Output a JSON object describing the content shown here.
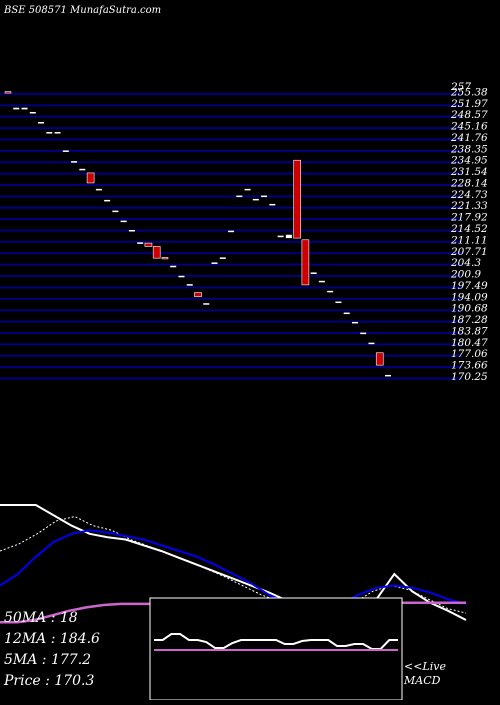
{
  "header": {
    "code": "BSE 508571",
    "site": "MunafaSutra.com"
  },
  "chart_data": [
    {
      "type": "candlestick",
      "title": "",
      "y_tick_labels": [
        "257",
        "255.38",
        "251.97",
        "248.57",
        "245.16",
        "241.76",
        "238.35",
        "234.95",
        "231.54",
        "228.14",
        "224.73",
        "221.33",
        "217.92",
        "214.52",
        "211.11",
        "207.71",
        "204.3",
        "200.9",
        "197.49",
        "194.09",
        "190.68",
        "187.28",
        "183.87",
        "180.47",
        "177.06",
        "173.66",
        "170.25"
      ],
      "ylim": [
        170.25,
        257
      ],
      "grid": true,
      "candles": [
        {
          "o": 255.3,
          "c": 254.9,
          "color": "red"
        },
        {
          "o": 250.5,
          "c": 250.0,
          "color": "white"
        },
        {
          "o": 250.5,
          "c": 250.0,
          "color": "white"
        },
        {
          "o": 249.0,
          "c": 249.0,
          "color": "white"
        },
        {
          "o": 246.0,
          "c": 246.0,
          "color": "white"
        },
        {
          "o": 243.0,
          "c": 243.0,
          "color": "white"
        },
        {
          "o": 243.0,
          "c": 243.0,
          "color": "white"
        },
        {
          "o": 237.5,
          "c": 237.5,
          "color": "white"
        },
        {
          "o": 234.3,
          "c": 234.3,
          "color": "white"
        },
        {
          "o": 232.0,
          "c": 232.0,
          "color": "white"
        },
        {
          "o": 231.0,
          "c": 228.0,
          "color": "red"
        },
        {
          "o": 226.0,
          "c": 226.0,
          "color": "white"
        },
        {
          "o": 222.7,
          "c": 222.7,
          "color": "white"
        },
        {
          "o": 219.5,
          "c": 219.5,
          "color": "white"
        },
        {
          "o": 216.5,
          "c": 216.5,
          "color": "white"
        },
        {
          "o": 213.7,
          "c": 213.7,
          "color": "white"
        },
        {
          "o": 210.0,
          "c": 210.0,
          "color": "white"
        },
        {
          "o": 210.0,
          "c": 209.0,
          "color": "red"
        },
        {
          "o": 209.0,
          "c": 205.5,
          "color": "red"
        },
        {
          "o": 205.7,
          "c": 205.3,
          "color": "red"
        },
        {
          "o": 203.0,
          "c": 203.0,
          "color": "white"
        },
        {
          "o": 200.0,
          "c": 200.0,
          "color": "white"
        },
        {
          "o": 197.5,
          "c": 197.5,
          "color": "white"
        },
        {
          "o": 195.2,
          "c": 194.0,
          "color": "red"
        },
        {
          "o": 191.8,
          "c": 191.8,
          "color": "white"
        },
        {
          "o": 204.0,
          "c": 204.0,
          "color": "white"
        },
        {
          "o": 205.5,
          "c": 205.5,
          "color": "white"
        },
        {
          "o": 213.5,
          "c": 213.5,
          "color": "white"
        },
        {
          "o": 224.0,
          "c": 224.0,
          "color": "white"
        },
        {
          "o": 226.0,
          "c": 226.0,
          "color": "white"
        },
        {
          "o": 223.0,
          "c": 223.0,
          "color": "white"
        },
        {
          "o": 224.0,
          "c": 224.0,
          "color": "white"
        },
        {
          "o": 221.5,
          "c": 221.5,
          "color": "white"
        },
        {
          "o": 212.0,
          "c": 212.0,
          "color": "white"
        },
        {
          "o": 212.5,
          "c": 211.5,
          "color": "white"
        },
        {
          "o": 234.8,
          "c": 211.5,
          "color": "red"
        },
        {
          "o": 211.0,
          "c": 197.5,
          "color": "red"
        },
        {
          "o": 201.0,
          "c": 201.0,
          "color": "white"
        },
        {
          "o": 198.5,
          "c": 198.5,
          "color": "white"
        },
        {
          "o": 195.5,
          "c": 195.5,
          "color": "white"
        },
        {
          "o": 192.3,
          "c": 192.3,
          "color": "white"
        },
        {
          "o": 189.0,
          "c": 189.0,
          "color": "white"
        },
        {
          "o": 186.2,
          "c": 186.2,
          "color": "white"
        },
        {
          "o": 183.0,
          "c": 183.0,
          "color": "white"
        },
        {
          "o": 180.0,
          "c": 180.0,
          "color": "white"
        },
        {
          "o": 177.2,
          "c": 173.5,
          "color": "red"
        },
        {
          "o": 170.4,
          "c": 170.3,
          "color": "white"
        }
      ]
    },
    {
      "type": "line",
      "title": "",
      "series": [
        {
          "color": "#ffffff",
          "values": [
            100,
            100,
            100,
            91,
            82,
            75,
            72,
            70,
            65,
            60,
            54,
            48,
            42,
            36,
            30,
            24,
            17,
            11,
            5,
            0,
            2,
            18,
            40,
            25,
            15,
            8,
            0
          ]
        },
        {
          "color": "#ffffff",
          "dashed": true,
          "values": [
            60,
            66,
            75,
            86,
            90,
            82,
            78,
            70,
            64,
            58,
            52,
            45,
            38,
            30,
            22,
            16,
            8,
            2,
            4,
            15,
            25,
            30,
            26,
            18,
            10,
            6
          ]
        },
        {
          "color": "#0000ee",
          "values": [
            30,
            40,
            55,
            68,
            75,
            78,
            76,
            73,
            70,
            65,
            60,
            55,
            48,
            40,
            32,
            22,
            15,
            10,
            8,
            14,
            22,
            28,
            30,
            28,
            24,
            18,
            14
          ]
        },
        {
          "color": "#cc66cc",
          "values": [
            -2,
            -2,
            0,
            4,
            8,
            11,
            13,
            14,
            14,
            14,
            14,
            13,
            13,
            12,
            12,
            12,
            12,
            12,
            12,
            12,
            12,
            13,
            14,
            15,
            15,
            15,
            15,
            15
          ]
        }
      ]
    },
    {
      "type": "line",
      "title": "",
      "series": [
        {
          "color": "#ffffff",
          "values": [
            0,
            0,
            6,
            6,
            0,
            0,
            -2,
            -8,
            -8,
            -3,
            0,
            0,
            0,
            0,
            0,
            -4,
            -4,
            -1,
            0,
            0,
            0,
            -6,
            -6,
            -4,
            -4,
            -9,
            -9,
            0,
            0
          ]
        },
        {
          "color": "#cc66cc",
          "values": [
            0,
            0,
            0,
            0,
            0,
            0,
            0,
            0,
            0,
            0,
            0,
            0,
            0,
            0,
            0,
            0,
            0,
            0,
            0,
            0,
            0,
            0,
            0,
            0,
            0,
            0,
            0,
            0,
            0
          ]
        }
      ]
    }
  ],
  "ma_panel": {
    "ma50": "50MA : 18",
    "ma12": "12MA : 184.6",
    "ma5": "5MA : 177.2",
    "price": "Price   : 170.3"
  },
  "macd": {
    "live": "<<Live",
    "label": "MACD"
  },
  "colors": {
    "background": "#000000",
    "grid": "#000080",
    "candle_up": "#ffffff",
    "candle_down": "#cc0000",
    "text": "#ffffff"
  }
}
